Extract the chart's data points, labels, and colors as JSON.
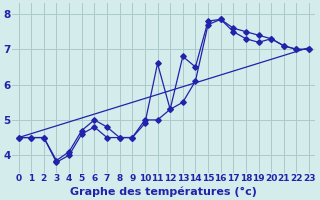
{
  "xlabel": "Graphe des températures (°c)",
  "background_color": "#d4ecec",
  "line_color": "#2222aa",
  "grid_color": "#aacaca",
  "xlim": [
    -0.5,
    23.5
  ],
  "ylim": [
    3.5,
    8.3
  ],
  "xticks": [
    0,
    1,
    2,
    3,
    4,
    5,
    6,
    7,
    8,
    9,
    10,
    11,
    12,
    13,
    14,
    15,
    16,
    17,
    18,
    19,
    20,
    21,
    22,
    23
  ],
  "yticks": [
    4,
    5,
    6,
    7,
    8
  ],
  "ytick_labels": [
    "4",
    "5",
    "6",
    "7",
    "8"
  ],
  "series1_x": [
    0,
    1,
    2,
    3,
    4,
    5,
    6,
    7,
    8,
    9,
    10,
    11,
    12,
    13,
    14,
    15,
    16,
    17,
    18,
    19,
    20,
    21,
    22,
    23
  ],
  "series1_y": [
    4.5,
    4.5,
    4.5,
    3.8,
    4.0,
    4.6,
    4.8,
    4.5,
    4.5,
    4.5,
    4.9,
    6.6,
    5.3,
    6.8,
    6.5,
    7.8,
    7.85,
    7.5,
    7.3,
    7.2,
    7.3,
    7.1,
    7.0,
    7.0
  ],
  "series2_x": [
    0,
    1,
    2,
    3,
    4,
    5,
    6,
    7,
    8,
    9,
    10,
    11,
    12,
    13,
    14,
    15,
    16,
    17,
    18,
    19,
    20,
    21,
    22,
    23
  ],
  "series2_y": [
    4.5,
    4.5,
    4.5,
    3.85,
    4.1,
    4.7,
    5.0,
    4.8,
    4.5,
    4.5,
    5.0,
    5.0,
    5.3,
    5.5,
    6.1,
    7.7,
    7.85,
    7.6,
    7.5,
    7.4,
    7.3,
    7.1,
    7.0,
    7.0
  ],
  "series3_x": [
    0,
    23
  ],
  "series3_y": [
    4.5,
    7.05
  ],
  "tick_fontsize": 6.5,
  "label_fontsize": 8,
  "font_family": "DejaVu Sans"
}
